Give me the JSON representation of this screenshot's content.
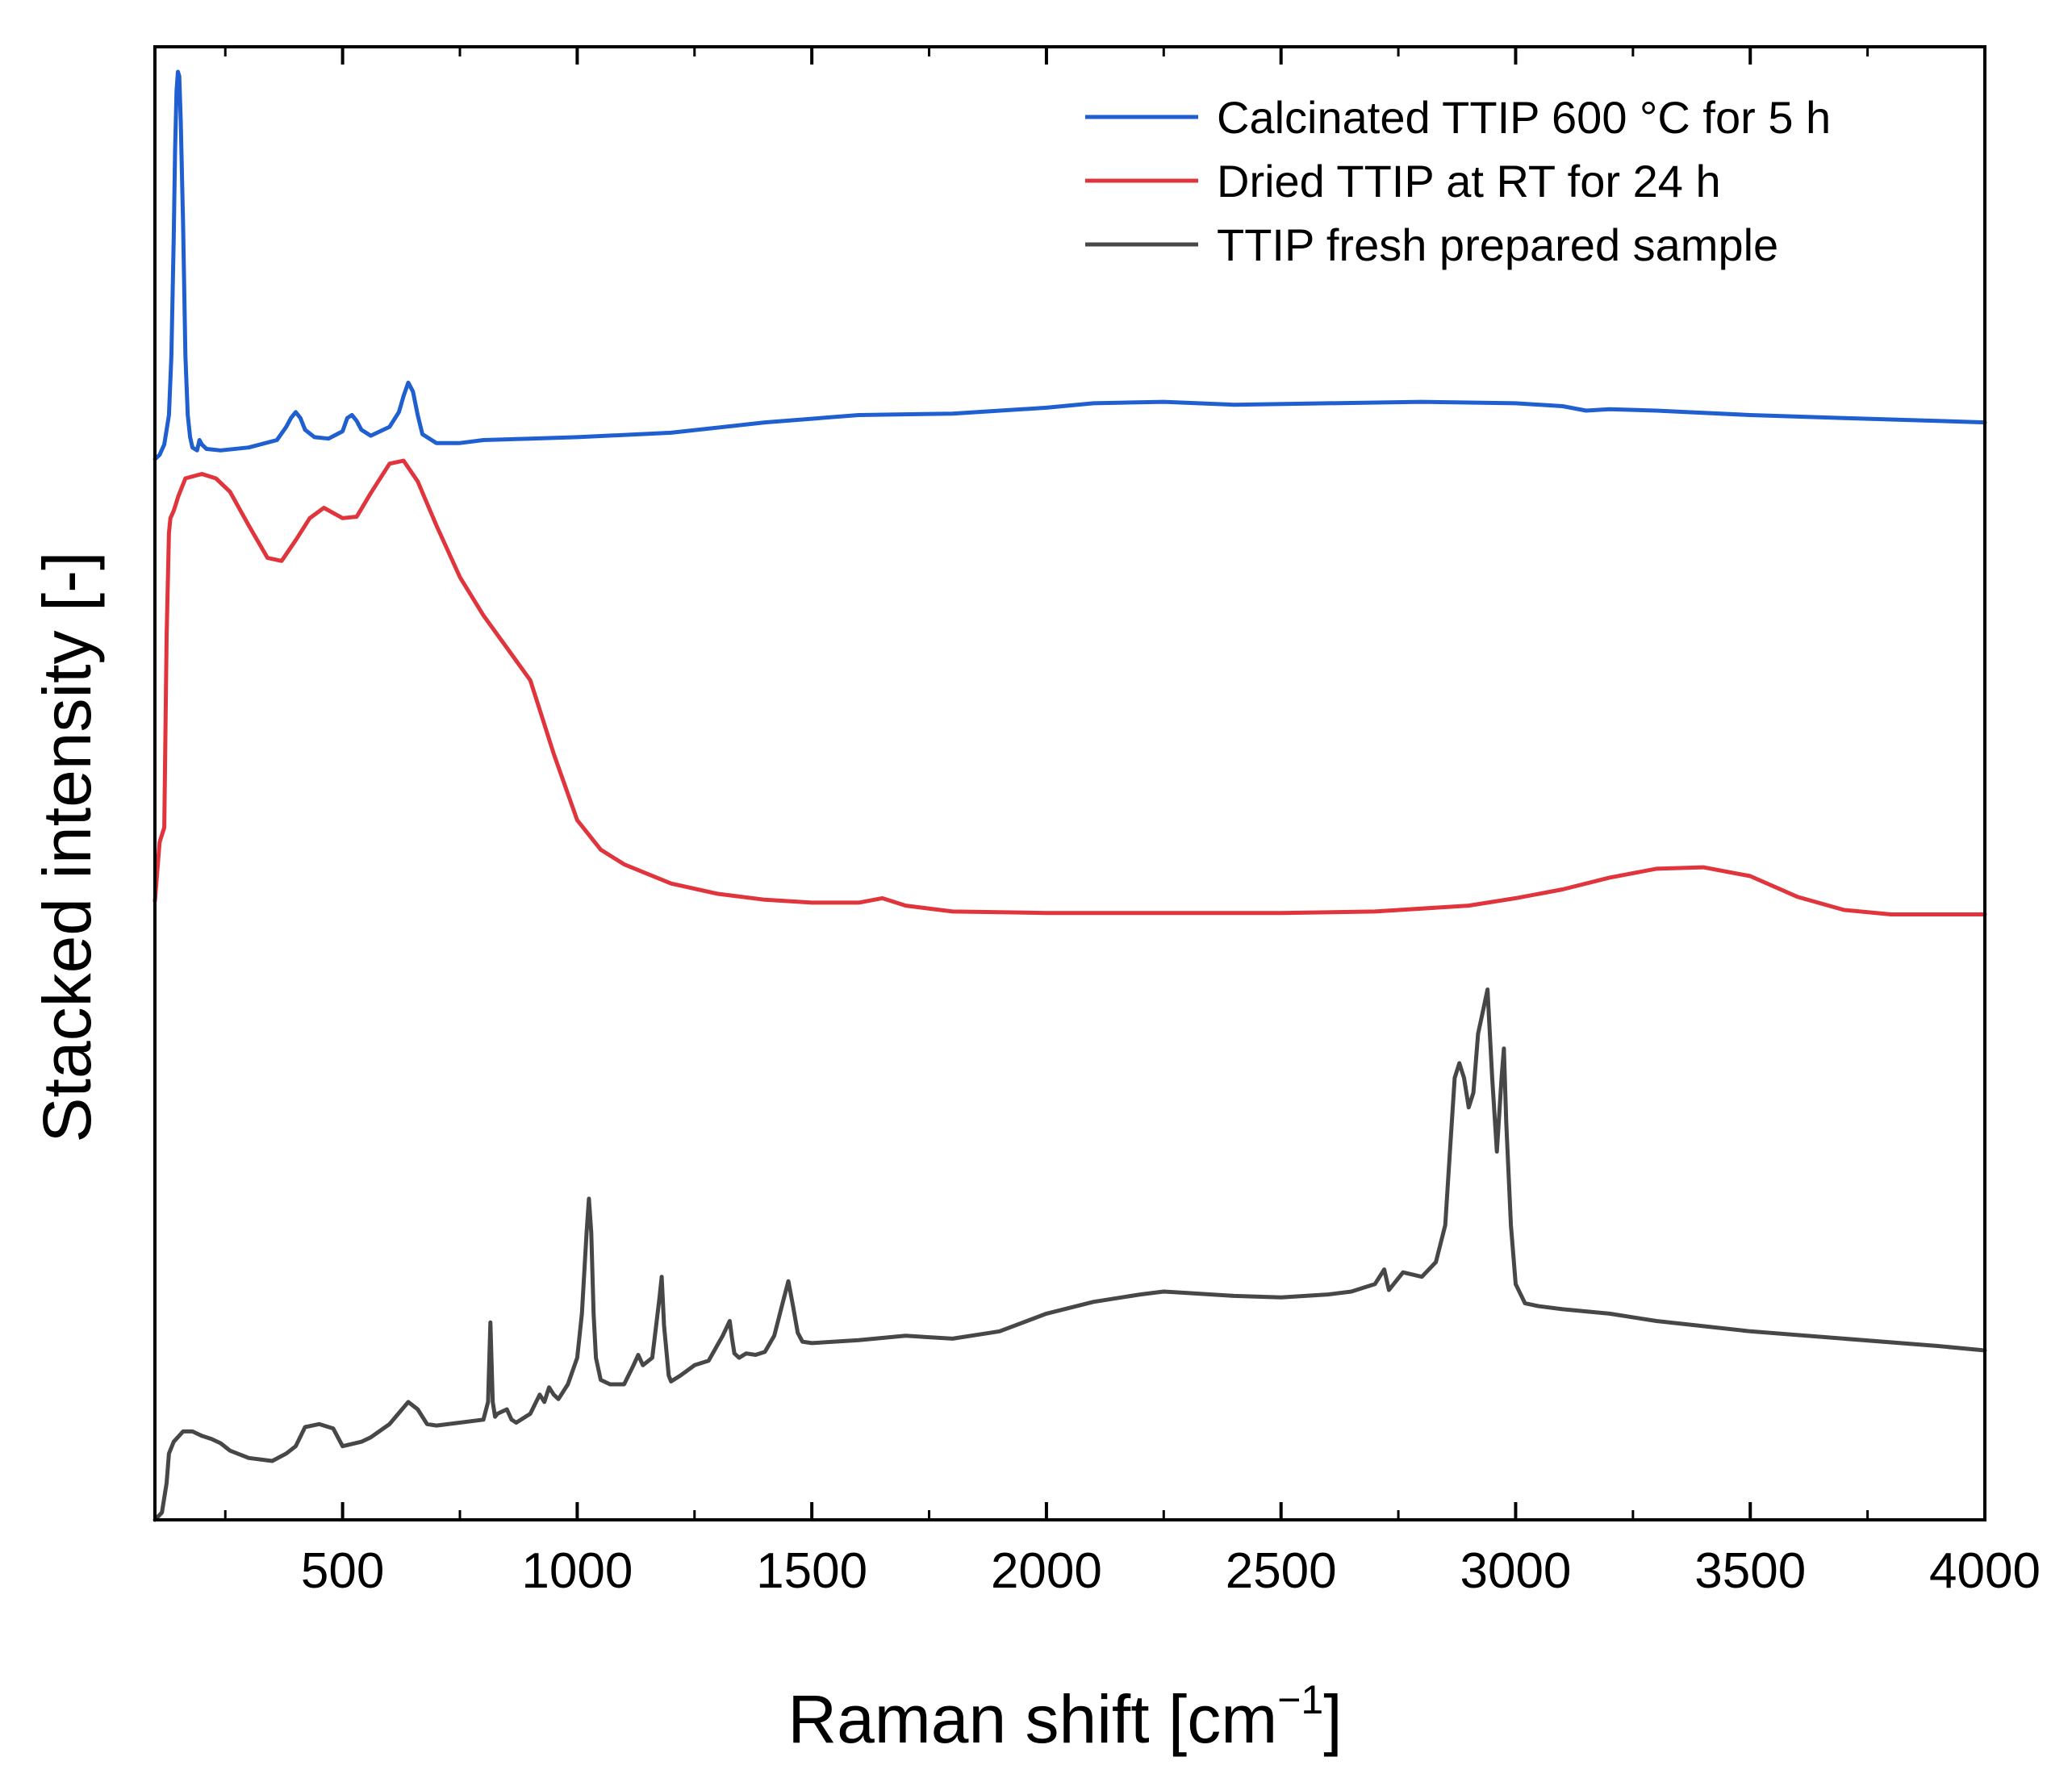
{
  "chart_data": {
    "type": "line",
    "title": "",
    "xlabel_main": "Raman shift [cm",
    "xlabel_sup": "−1",
    "xlabel_end": "]",
    "ylabel": "Stacked intensity [-]",
    "xlim": [
      100,
      4000
    ],
    "ylim": [
      0,
      100
    ],
    "x_ticks": [
      500,
      1000,
      1500,
      2000,
      2500,
      3000,
      3500,
      4000
    ],
    "x_tick_labels": [
      "500",
      "1000",
      "1500",
      "2000",
      "2500",
      "3000",
      "3500",
      "4000"
    ],
    "x_minor_ticks": [
      250,
      750,
      1250,
      1750,
      2250,
      2750,
      3250,
      3750
    ],
    "legend_position": "top-right",
    "grid": false,
    "series": [
      {
        "name": "Calcinated TTIP 600 °C for 5 h",
        "color": "#1f5fd0",
        "x": [
          100,
          110,
          120,
          130,
          135,
          140,
          143,
          146,
          149,
          152,
          155,
          160,
          165,
          170,
          175,
          180,
          190,
          195,
          200,
          210,
          240,
          300,
          360,
          380,
          390,
          400,
          410,
          420,
          440,
          470,
          500,
          510,
          520,
          530,
          540,
          560,
          600,
          620,
          630,
          640,
          650,
          660,
          670,
          700,
          750,
          800,
          900,
          1000,
          1200,
          1400,
          1600,
          1800,
          2000,
          2100,
          2250,
          2400,
          2600,
          2800,
          3000,
          3100,
          3150,
          3200,
          3300,
          3500,
          3700,
          4000
        ],
        "y": [
          72,
          72.3,
          73,
          75,
          79,
          87,
          93,
          97,
          98.3,
          98,
          95,
          88,
          79,
          75,
          73.5,
          72.8,
          72.6,
          73.3,
          73,
          72.7,
          72.6,
          72.8,
          73.3,
          74.2,
          74.8,
          75.2,
          74.8,
          74,
          73.5,
          73.4,
          73.9,
          74.8,
          75,
          74.6,
          74,
          73.6,
          74.2,
          75.2,
          76.3,
          77.2,
          76.6,
          75,
          73.7,
          73.1,
          73.1,
          73.3,
          73.4,
          73.5,
          73.8,
          74.5,
          75,
          75.1,
          75.5,
          75.8,
          75.9,
          75.7,
          75.8,
          75.9,
          75.8,
          75.6,
          75.3,
          75.4,
          75.3,
          75,
          74.8,
          74.5
        ]
      },
      {
        "name": "Dried TTIP at RT for 24 h",
        "color": "#e0353c",
        "x": [
          100,
          105,
          110,
          120,
          125,
          130,
          133,
          140,
          150,
          165,
          200,
          230,
          260,
          300,
          340,
          370,
          400,
          430,
          460,
          500,
          530,
          560,
          600,
          630,
          660,
          700,
          750,
          800,
          850,
          900,
          920,
          950,
          1000,
          1050,
          1100,
          1200,
          1300,
          1400,
          1500,
          1600,
          1650,
          1700,
          1800,
          2000,
          2200,
          2500,
          2700,
          2900,
          3000,
          3100,
          3200,
          3300,
          3400,
          3500,
          3600,
          3700,
          3800,
          4000
        ],
        "y": [
          42,
          44,
          46,
          47,
          60,
          67,
          68,
          68.5,
          69.5,
          70.7,
          71,
          70.7,
          69.8,
          67.5,
          65.3,
          65.1,
          66.5,
          68,
          68.7,
          68,
          68.1,
          69.7,
          71.7,
          71.9,
          70.5,
          67.5,
          64,
          61.4,
          59.2,
          57,
          55,
          52,
          47.5,
          45.5,
          44.5,
          43.2,
          42.5,
          42.1,
          41.9,
          41.9,
          42.2,
          41.7,
          41.3,
          41.2,
          41.2,
          41.2,
          41.3,
          41.7,
          42.2,
          42.8,
          43.6,
          44.2,
          44.3,
          43.7,
          42.3,
          41.4,
          41.1,
          41.1
        ]
      },
      {
        "name": "TTIP fresh prepared sample",
        "color": "#474747",
        "x": [
          100,
          115,
          125,
          130,
          140,
          160,
          180,
          200,
          220,
          240,
          260,
          300,
          350,
          380,
          400,
          420,
          450,
          480,
          500,
          540,
          560,
          600,
          640,
          660,
          680,
          700,
          800,
          810,
          815,
          820,
          825,
          830,
          850,
          860,
          870,
          900,
          920,
          930,
          940,
          950,
          960,
          980,
          1000,
          1010,
          1020,
          1025,
          1030,
          1035,
          1040,
          1050,
          1070,
          1100,
          1120,
          1130,
          1140,
          1160,
          1175,
          1180,
          1185,
          1195,
          1200,
          1220,
          1250,
          1280,
          1310,
          1325,
          1330,
          1335,
          1345,
          1360,
          1380,
          1400,
          1420,
          1440,
          1450,
          1460,
          1470,
          1480,
          1500,
          1600,
          1700,
          1800,
          1900,
          2000,
          2100,
          2200,
          2250,
          2300,
          2400,
          2500,
          2600,
          2650,
          2700,
          2720,
          2730,
          2760,
          2800,
          2830,
          2850,
          2860,
          2870,
          2880,
          2890,
          2900,
          2910,
          2920,
          2930,
          2940,
          2950,
          2960,
          2970,
          2975,
          2980,
          2990,
          3000,
          3020,
          3050,
          3100,
          3200,
          3300,
          3500,
          3700,
          3900,
          4000
        ],
        "y": [
          0,
          0.5,
          2.5,
          4.5,
          5.3,
          6,
          6,
          5.7,
          5.5,
          5.2,
          4.7,
          4.2,
          4,
          4.5,
          5,
          6.3,
          6.5,
          6.2,
          5,
          5.3,
          5.6,
          6.5,
          8,
          7.5,
          6.5,
          6.4,
          6.8,
          8,
          13.4,
          8,
          7,
          7.2,
          7.5,
          6.8,
          6.6,
          7.2,
          8.5,
          8,
          9,
          8.5,
          8.2,
          9.2,
          11,
          14,
          19.5,
          21.8,
          19.5,
          14,
          11,
          9.5,
          9.2,
          9.2,
          10.5,
          11.2,
          10.5,
          11,
          15,
          16.5,
          13.2,
          9.8,
          9.4,
          9.8,
          10.5,
          10.8,
          12.5,
          13.5,
          12.3,
          11.3,
          11,
          11.3,
          11.2,
          11.4,
          12.5,
          15,
          16.2,
          14.5,
          12.7,
          12.1,
          12,
          12.2,
          12.5,
          12.3,
          12.8,
          14,
          14.8,
          15.3,
          15.5,
          15.4,
          15.2,
          15.1,
          15.3,
          15.5,
          16,
          17,
          15.6,
          16.8,
          16.5,
          17.5,
          20,
          25,
          30,
          31,
          30,
          28,
          29,
          33,
          34.5,
          36,
          30,
          25,
          30,
          32,
          27,
          20,
          16,
          14.7,
          14.5,
          14.3,
          14,
          13.5,
          12.8,
          12.3,
          11.8,
          11.5
        ]
      }
    ]
  }
}
